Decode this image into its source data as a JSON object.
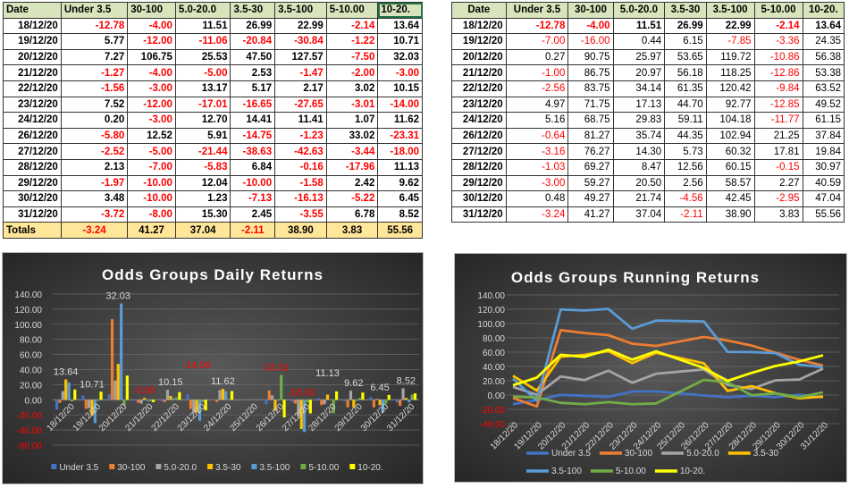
{
  "columns": [
    "Date",
    "Under 3.5",
    "30-100",
    "5.0-20.0",
    "3.5-30",
    "3.5-100",
    "5-10.00",
    "10-20."
  ],
  "daily_table": {
    "rows": [
      [
        "18/12/20",
        -12.78,
        -4.0,
        11.51,
        26.99,
        22.99,
        -2.14,
        13.64
      ],
      [
        "19/12/20",
        5.77,
        -12.0,
        -11.06,
        -20.84,
        -30.84,
        -1.22,
        10.71
      ],
      [
        "20/12/20",
        7.27,
        106.75,
        25.53,
        47.5,
        127.57,
        -7.5,
        32.03
      ],
      [
        "21/12/20",
        -1.27,
        -4.0,
        -5.0,
        2.53,
        -1.47,
        -2.0,
        -3.0
      ],
      [
        "22/12/20",
        -1.56,
        -3.0,
        13.17,
        5.17,
        2.17,
        3.02,
        10.15
      ],
      [
        "23/12/20",
        7.52,
        -12.0,
        -17.01,
        -16.65,
        -27.65,
        -3.01,
        -14.0
      ],
      [
        "24/12/20",
        0.2,
        -3.0,
        12.7,
        14.41,
        11.41,
        1.07,
        11.62
      ],
      [
        "26/12/20",
        -5.8,
        12.52,
        5.91,
        -14.75,
        -1.23,
        33.02,
        -23.31
      ],
      [
        "27/12/20",
        -2.52,
        -5.0,
        -21.44,
        -38.63,
        -42.63,
        -3.44,
        -18.0
      ],
      [
        "28/12/20",
        2.13,
        -7.0,
        -5.83,
        6.84,
        -0.16,
        -17.96,
        11.13
      ],
      [
        "29/12/20",
        -1.97,
        -10.0,
        12.04,
        -10.0,
        -1.58,
        2.42,
        9.62
      ],
      [
        "30/12/20",
        3.48,
        -10.0,
        1.23,
        -7.13,
        -16.13,
        -5.22,
        6.45
      ],
      [
        "31/12/20",
        -3.72,
        -8.0,
        15.3,
        2.45,
        -3.55,
        6.78,
        8.52
      ]
    ],
    "totals_label": "Totals",
    "totals": [
      -3.24,
      41.27,
      37.04,
      -2.11,
      38.9,
      3.83,
      55.56
    ]
  },
  "running_table": {
    "rows": [
      [
        "18/12/20",
        -12.78,
        -4.0,
        11.51,
        26.99,
        22.99,
        -2.14,
        13.64
      ],
      [
        "19/12/20",
        -7.0,
        -16.0,
        0.44,
        6.15,
        -7.85,
        -3.36,
        24.35
      ],
      [
        "20/12/20",
        0.27,
        90.75,
        25.97,
        53.65,
        119.72,
        -10.86,
        56.38
      ],
      [
        "21/12/20",
        -1.0,
        86.75,
        20.97,
        56.18,
        118.25,
        -12.86,
        53.38
      ],
      [
        "22/12/20",
        -2.56,
        83.75,
        34.14,
        61.35,
        120.42,
        -9.84,
        63.52
      ],
      [
        "23/12/20",
        4.97,
        71.75,
        17.13,
        44.7,
        92.77,
        -12.85,
        49.52
      ],
      [
        "24/12/20",
        5.16,
        68.75,
        29.83,
        59.11,
        104.18,
        -11.77,
        61.15
      ],
      [
        "26/12/20",
        -0.64,
        81.27,
        35.74,
        44.35,
        102.94,
        21.25,
        37.84
      ],
      [
        "27/12/20",
        -3.16,
        76.27,
        14.3,
        5.73,
        60.32,
        17.81,
        19.84
      ],
      [
        "28/12/20",
        -1.03,
        69.27,
        8.47,
        12.56,
        60.15,
        -0.15,
        30.97
      ],
      [
        "29/12/20",
        -3.0,
        59.27,
        20.5,
        2.56,
        58.57,
        2.27,
        40.59
      ],
      [
        "30/12/20",
        0.48,
        49.27,
        21.74,
        -4.56,
        42.45,
        -2.95,
        47.04
      ],
      [
        "31/12/20",
        -3.24,
        41.27,
        37.04,
        -2.11,
        38.9,
        3.83,
        55.56
      ]
    ]
  },
  "colors": {
    "Under 3.5": "#4472c4",
    "30-100": "#ed7d31",
    "5.0-20.0": "#a5a5a5",
    "3.5-30": "#ffc000",
    "3.5-100": "#5b9bd5",
    "5-10.00": "#70ad47",
    "10-20.": "#ffff00",
    "negative": "#ff0000"
  },
  "chart_data": [
    {
      "type": "bar",
      "title": "Odds Groups Daily Returns",
      "categories": [
        "18/12/20",
        "19/12/20",
        "20/12/20",
        "21/12/20",
        "22/12/20",
        "23/12/20",
        "24/12/20",
        "25/12/20",
        "26/12/20",
        "27/12/20",
        "28/12/20",
        "29/12/20",
        "30/12/20",
        "31/12/20"
      ],
      "ylim": [
        -60,
        140
      ],
      "yticks": [
        "140.00",
        "120.00",
        "100.00",
        "80.00",
        "60.00",
        "40.00",
        "20.00",
        "0.00",
        "-20.00",
        "-40.00",
        "-60.00"
      ],
      "grid": true,
      "legend": "bottom",
      "data_labels_series": "10-20.",
      "series": [
        {
          "name": "Under 3.5",
          "values": [
            -12.78,
            5.77,
            7.27,
            -1.27,
            -1.56,
            7.52,
            0.2,
            null,
            -5.8,
            -2.52,
            2.13,
            -1.97,
            3.48,
            -3.72
          ]
        },
        {
          "name": "30-100",
          "values": [
            -4.0,
            -12.0,
            106.75,
            -4.0,
            -3.0,
            -12.0,
            -3.0,
            null,
            12.52,
            -5.0,
            -7.0,
            -10.0,
            -10.0,
            -8.0
          ]
        },
        {
          "name": "5.0-20.0",
          "values": [
            11.51,
            -11.06,
            25.53,
            -5.0,
            13.17,
            -17.01,
            12.7,
            null,
            5.91,
            -21.44,
            -5.83,
            12.04,
            1.23,
            15.3
          ]
        },
        {
          "name": "3.5-30",
          "values": [
            26.99,
            -20.84,
            47.5,
            2.53,
            5.17,
            -16.65,
            14.41,
            null,
            -14.75,
            -38.63,
            6.84,
            -10.0,
            -7.13,
            2.45
          ]
        },
        {
          "name": "3.5-100",
          "values": [
            22.99,
            -30.84,
            127.57,
            -1.47,
            2.17,
            -27.65,
            11.41,
            null,
            -1.23,
            -42.63,
            -0.16,
            -1.58,
            -16.13,
            -3.55
          ]
        },
        {
          "name": "5-10.00",
          "values": [
            -2.14,
            -1.22,
            -7.5,
            -2.0,
            3.02,
            -3.01,
            1.07,
            null,
            33.02,
            -3.44,
            -17.96,
            2.42,
            -5.22,
            6.78
          ]
        },
        {
          "name": "10-20.",
          "values": [
            13.64,
            10.71,
            32.03,
            -3.0,
            10.15,
            -14.0,
            11.62,
            null,
            -23.31,
            -18.0,
            11.13,
            9.62,
            6.45,
            8.52
          ]
        }
      ]
    },
    {
      "type": "line",
      "title": "Odds Groups Running Returns",
      "categories": [
        "18/12/20",
        "19/12/20",
        "20/12/20",
        "21/12/20",
        "22/12/20",
        "23/12/20",
        "24/12/20",
        "25/12/20",
        "26/12/20",
        "27/12/20",
        "28/12/20",
        "29/12/20",
        "30/12/20",
        "31/12/20"
      ],
      "ylim": [
        -40,
        140
      ],
      "yticks": [
        "140.00",
        "120.00",
        "100.00",
        "80.00",
        "60.00",
        "40.00",
        "20.00",
        "0.00",
        "-20.00",
        "-40.00"
      ],
      "grid": true,
      "legend": "bottom",
      "series": [
        {
          "name": "Under 3.5",
          "values": [
            -12.78,
            -7.0,
            0.27,
            -1.0,
            -2.56,
            4.97,
            5.16,
            null,
            -0.64,
            -3.16,
            -1.03,
            -3.0,
            0.48,
            -3.24
          ]
        },
        {
          "name": "30-100",
          "values": [
            -4.0,
            -16.0,
            90.75,
            86.75,
            83.75,
            71.75,
            68.75,
            null,
            81.27,
            76.27,
            69.27,
            59.27,
            49.27,
            41.27
          ]
        },
        {
          "name": "5.0-20.0",
          "values": [
            11.51,
            0.44,
            25.97,
            20.97,
            34.14,
            17.13,
            29.83,
            null,
            35.74,
            14.3,
            8.47,
            20.5,
            21.74,
            37.04
          ]
        },
        {
          "name": "3.5-30",
          "values": [
            26.99,
            6.15,
            53.65,
            56.18,
            61.35,
            44.7,
            59.11,
            null,
            44.35,
            5.73,
            12.56,
            2.56,
            -4.56,
            -2.11
          ]
        },
        {
          "name": "3.5-100",
          "values": [
            22.99,
            -7.85,
            119.72,
            118.25,
            120.42,
            92.77,
            104.18,
            null,
            102.94,
            60.32,
            60.15,
            58.57,
            42.45,
            38.9
          ]
        },
        {
          "name": "5-10.00",
          "values": [
            -2.14,
            -3.36,
            -10.86,
            -12.86,
            -9.84,
            -12.85,
            -11.77,
            null,
            21.25,
            17.81,
            -0.15,
            2.27,
            -2.95,
            3.83
          ]
        },
        {
          "name": "10-20.",
          "values": [
            13.64,
            24.35,
            56.38,
            53.38,
            63.52,
            49.52,
            61.15,
            null,
            37.84,
            19.84,
            30.97,
            40.59,
            47.04,
            55.56
          ]
        }
      ]
    }
  ]
}
